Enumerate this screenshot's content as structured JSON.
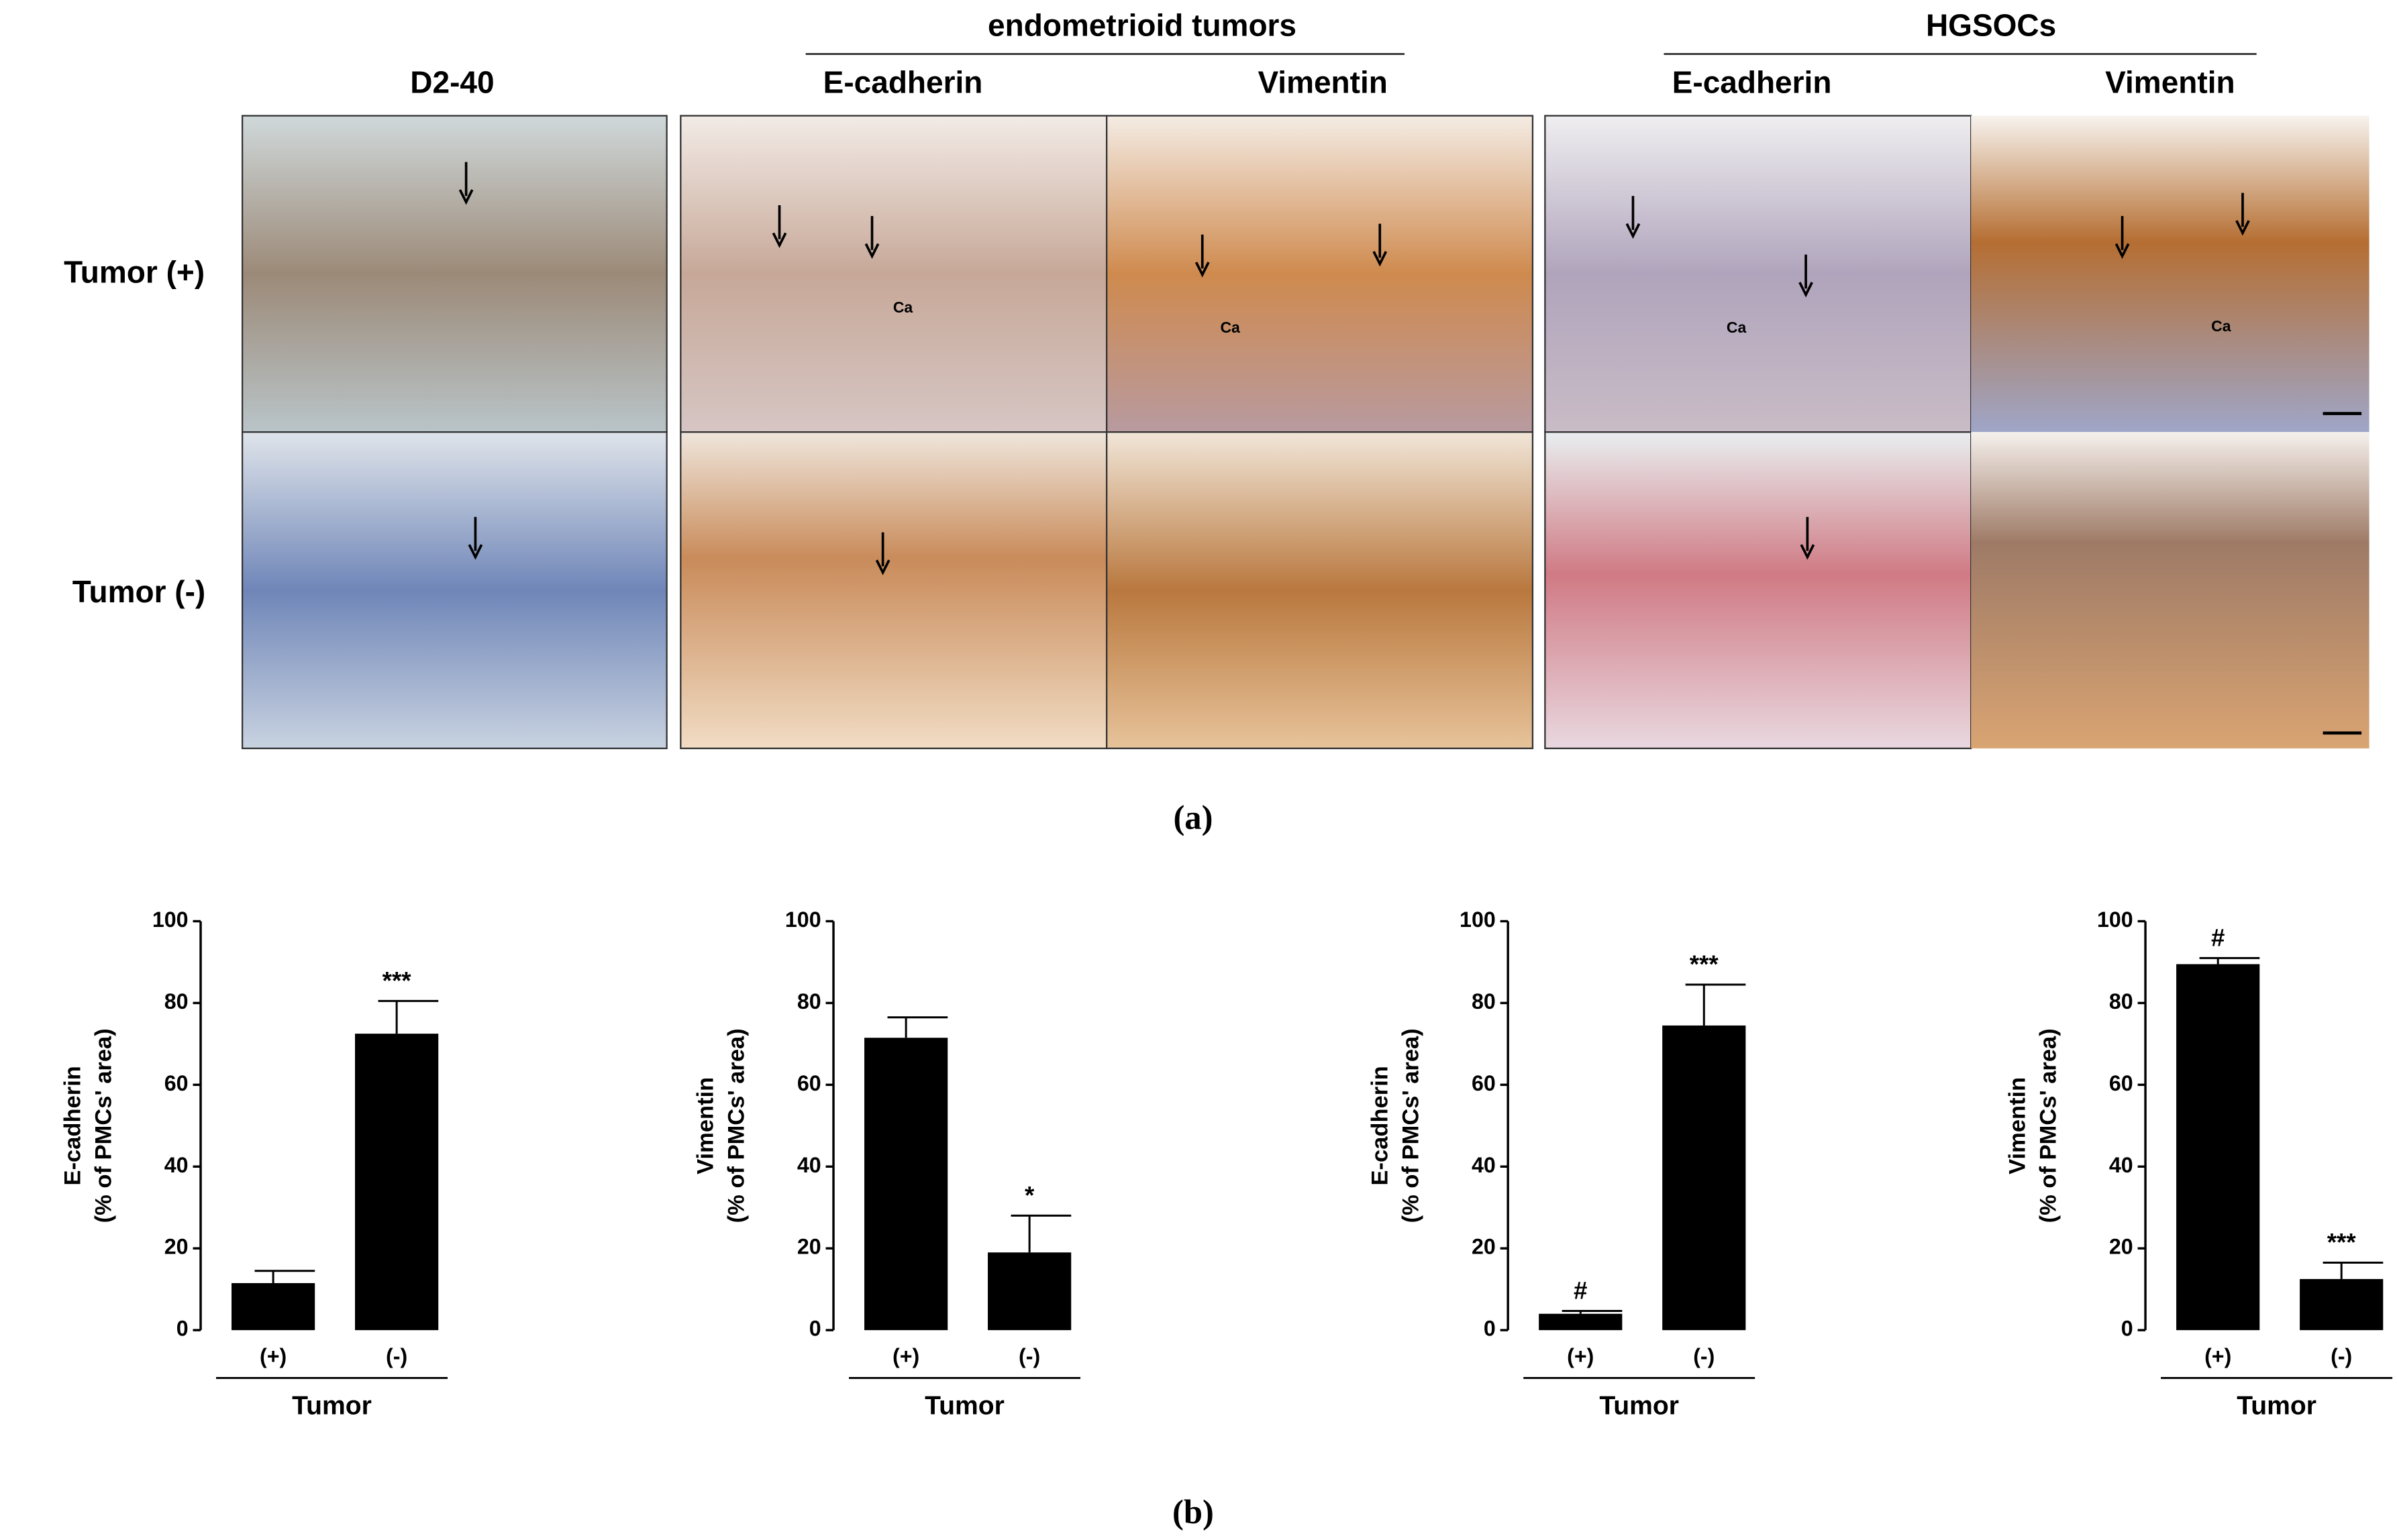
{
  "panel_a": {
    "group_headers": [
      "endometrioid tumors",
      "HGSOCs"
    ],
    "column_headers": [
      "D2-40",
      "E-cadherin",
      "Vimentin",
      "E-cadherin",
      "Vimentin"
    ],
    "row_labels": [
      "Tumor (+)",
      "Tumor (-)"
    ],
    "image_labels": [
      "Ca",
      "Ca",
      "Ca",
      "Ca"
    ]
  },
  "panel_labels": [
    "(a)",
    "(b)"
  ],
  "chart_data": [
    {
      "type": "bar",
      "ylabel": [
        "E-cadherin",
        "(% of PMCs' area)"
      ],
      "xlabel": "Tumor",
      "categories": [
        "(+)",
        "(-)"
      ],
      "values": [
        11.5,
        72.5
      ],
      "errors": [
        3,
        8
      ],
      "significance": [
        null,
        "***"
      ],
      "color": "#000000",
      "ylim": [
        0,
        100
      ],
      "yticks": [
        0,
        20,
        40,
        60,
        80,
        100
      ]
    },
    {
      "type": "bar",
      "ylabel": [
        "Vimentin",
        "(% of PMCs' area)"
      ],
      "xlabel": "Tumor",
      "categories": [
        "(+)",
        "(-)"
      ],
      "values": [
        71.5,
        19
      ],
      "errors": [
        5,
        9
      ],
      "significance": [
        null,
        "*"
      ],
      "color": "#000000",
      "ylim": [
        0,
        100
      ],
      "yticks": [
        0,
        20,
        40,
        60,
        80,
        100
      ]
    },
    {
      "type": "bar",
      "ylabel": [
        "E-cadherin",
        "(% of PMCs' area)"
      ],
      "xlabel": "Tumor",
      "categories": [
        "(+)",
        "(-)"
      ],
      "values": [
        4,
        74.5
      ],
      "errors": [
        0.7,
        10
      ],
      "significance": [
        "#",
        "***"
      ],
      "color": "#000000",
      "ylim": [
        0,
        100
      ],
      "yticks": [
        0,
        20,
        40,
        60,
        80,
        100
      ]
    },
    {
      "type": "bar",
      "ylabel": [
        "Vimentin",
        "(% of PMCs' area)"
      ],
      "xlabel": "Tumor",
      "categories": [
        "(+)",
        "(-)"
      ],
      "values": [
        89.5,
        12.5
      ],
      "errors": [
        1.5,
        4
      ],
      "significance": [
        "#",
        "***"
      ],
      "color": "#000000",
      "ylim": [
        0,
        100
      ],
      "yticks": [
        0,
        20,
        40,
        60,
        80,
        100
      ]
    }
  ]
}
